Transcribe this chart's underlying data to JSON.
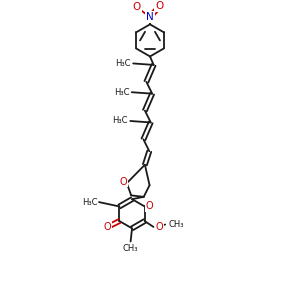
{
  "bg": "#ffffff",
  "bc": "#1a1a1a",
  "oc": "#cc0000",
  "nc": "#0000cc",
  "lw": 1.3,
  "fs": 6.5,
  "figsize": [
    3.0,
    3.0
  ],
  "dpi": 100,
  "xlim": [
    0.15,
    0.85
  ],
  "ylim": [
    0.0,
    1.0
  ]
}
